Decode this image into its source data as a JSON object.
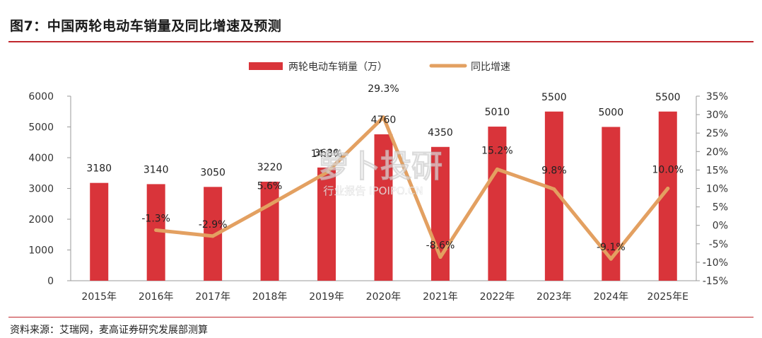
{
  "header": {
    "title": "图7：中国两轮电动车销量及同比增速及预测"
  },
  "footer": {
    "source": "资料来源：艾瑞网，麦高证券研究发展部测算"
  },
  "watermark": {
    "main": "萝卜投研",
    "sub": "行业报告 IPOIPO.CN"
  },
  "colors": {
    "bar": "#d9343a",
    "line": "#e3a061",
    "rule": "#c0272d"
  },
  "chart_data": {
    "type": "bar",
    "categories": [
      "2015年",
      "2016年",
      "2017年",
      "2018年",
      "2019年",
      "2020年",
      "2021年",
      "2022年",
      "2023年",
      "2024年",
      "2025年E"
    ],
    "series": [
      {
        "name": "两轮电动车销量（万）",
        "type": "bar",
        "axis": "left",
        "values": [
          3180,
          3140,
          3050,
          3220,
          3680,
          4760,
          4350,
          5010,
          5500,
          5000,
          5500
        ],
        "labels": [
          "3180",
          "3140",
          "3050",
          "3220",
          "3680",
          "4760",
          "4350",
          "5010",
          "5500",
          "5000",
          "5500"
        ]
      },
      {
        "name": "同比增速",
        "type": "line",
        "axis": "right",
        "values": [
          null,
          -1.3,
          -2.9,
          5.6,
          14.3,
          29.3,
          -8.6,
          15.2,
          9.8,
          -9.1,
          10.0
        ],
        "labels": [
          "",
          "-1.3%",
          "-2.9%",
          "5.6%",
          "14.3%",
          "29.3%",
          "-8.6%",
          "15.2%",
          "9.8%",
          "-9.1%",
          "10.0%"
        ]
      }
    ],
    "y_left": {
      "min": 0,
      "max": 6000,
      "ticks": [
        "0",
        "1000",
        "2000",
        "3000",
        "4000",
        "5000",
        "6000"
      ]
    },
    "y_right": {
      "min": -15,
      "max": 35,
      "ticks": [
        "-15%",
        "-10%",
        "-5%",
        "0%",
        "5%",
        "10%",
        "15%",
        "20%",
        "25%",
        "30%",
        "35%"
      ]
    },
    "grid": false,
    "legend_position": "top-center"
  }
}
